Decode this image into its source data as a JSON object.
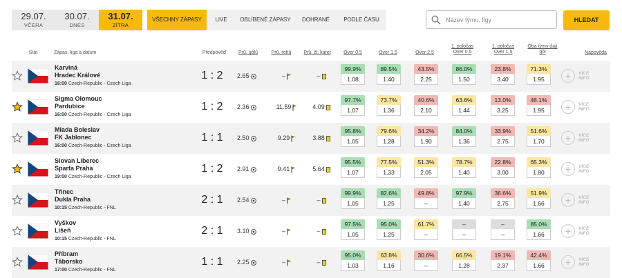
{
  "dates": [
    {
      "date": "29.07.",
      "label": "VČERA",
      "active": false
    },
    {
      "date": "30.07.",
      "label": "DNES",
      "active": false
    },
    {
      "date": "31.07.",
      "label": "ZÍTRA",
      "active": true
    }
  ],
  "filters": [
    "VŠECHNY ZÁPASY",
    "LIVE",
    "OBLÍBENÉ ZÁPASY",
    "DOHRANÉ",
    "PODLE ČASU"
  ],
  "search": {
    "placeholder": "Název týmu, ligy",
    "value": "",
    "button": "HLEDAT"
  },
  "columns": {
    "stat": "Stát",
    "match": "Zápas, liga a datum",
    "prediction": "Předpověď",
    "avg_goals": "Prů. gólů",
    "avg_corners": "Prů. rohů",
    "avg_cards": "Prů. žl. karet",
    "over05": "Over 0.5",
    "over15": "Over 1.5",
    "over25": "Over 2.5",
    "h1_over05_a": "1. poločas",
    "h1_over05_b": "Over 0.5",
    "h1_over15_a": "1. poločas",
    "h1_over15_b": "Over 1.5",
    "btts_a": "Oba týmy dají",
    "btts_b": "gól",
    "help": "Nápověda"
  },
  "info_label_1": "VÍCE",
  "info_label_2": "INFO",
  "matches": [
    {
      "home": "Karviná",
      "away": "Hradec Králové",
      "time": "16:00",
      "league": "Czech-Republic - Czech Liga",
      "favorite": false,
      "prediction": "1 : 2",
      "avg_goals": "2.65",
      "avg_corners": "–",
      "avg_cards": "–",
      "markets": [
        [
          "99.9%",
          "1.08",
          "g"
        ],
        [
          "89.5%",
          "1.40",
          "g"
        ],
        [
          "43.5%",
          "2.25",
          "r"
        ],
        [
          "86.0%",
          "1.50",
          "g"
        ],
        [
          "23.8%",
          "3.40",
          "r"
        ],
        [
          "71.3%",
          "1.95",
          "y"
        ]
      ]
    },
    {
      "home": "Sigma Olomouc",
      "away": "Pardubice",
      "time": "16:00",
      "league": "Czech-Republic - Czech Liga",
      "favorite": true,
      "prediction": "1 : 2",
      "avg_goals": "2.36",
      "avg_corners": "11.59",
      "avg_cards": "4.09",
      "markets": [
        [
          "97.7%",
          "1.07",
          "g"
        ],
        [
          "73.7%",
          "1.36",
          "y"
        ],
        [
          "40.6%",
          "2.10",
          "r"
        ],
        [
          "63.6%",
          "1.44",
          "y"
        ],
        [
          "13.0%",
          "3.25",
          "r"
        ],
        [
          "48.1%",
          "1.95",
          "r"
        ]
      ]
    },
    {
      "home": "Mlada Boleslav",
      "away": "FK Jablonec",
      "time": "16:00",
      "league": "Czech-Republic - Czech Liga",
      "favorite": false,
      "prediction": "1 : 1",
      "avg_goals": "2.50",
      "avg_corners": "9.29",
      "avg_cards": "3.88",
      "markets": [
        [
          "95.8%",
          "1.05",
          "g"
        ],
        [
          "79.6%",
          "1.28",
          "y"
        ],
        [
          "34.2%",
          "1.90",
          "r"
        ],
        [
          "84.0%",
          "1.36",
          "g"
        ],
        [
          "33.9%",
          "2.75",
          "r"
        ],
        [
          "51.6%",
          "1.70",
          "y"
        ]
      ]
    },
    {
      "home": "Slovan Liberec",
      "away": "Sparta Praha",
      "time": "19:00",
      "league": "Czech-Republic - Czech Liga",
      "favorite": true,
      "prediction": "1 : 2",
      "avg_goals": "2.91",
      "avg_corners": "9.41",
      "avg_cards": "5.64",
      "markets": [
        [
          "95.5%",
          "1.07",
          "g"
        ],
        [
          "77.5%",
          "1.33",
          "y"
        ],
        [
          "51.3%",
          "2.05",
          "y"
        ],
        [
          "78.7%",
          "1.40",
          "y"
        ],
        [
          "22.8%",
          "3.00",
          "r"
        ],
        [
          "65.3%",
          "1.80",
          "y"
        ]
      ]
    },
    {
      "home": "Třinec",
      "away": "Dukla Praha",
      "time": "10:15",
      "league": "Czech-Republic - FNL",
      "favorite": false,
      "prediction": "2 : 1",
      "avg_goals": "2.54",
      "avg_corners": "–",
      "avg_cards": "–",
      "markets": [
        [
          "99.9%",
          "1.05",
          "g"
        ],
        [
          "82.6%",
          "1.25",
          "g"
        ],
        [
          "49.8%",
          "–",
          "r"
        ],
        [
          "97.9%",
          "1.40",
          "g"
        ],
        [
          "36.6%",
          "2.75",
          "r"
        ],
        [
          "51.9%",
          "1.66",
          "y"
        ]
      ]
    },
    {
      "home": "Vyškov",
      "away": "Líšeň",
      "time": "10:15",
      "league": "Czech-Republic - FNL",
      "favorite": false,
      "prediction": "2 : 1",
      "avg_goals": "3.10",
      "avg_corners": "–",
      "avg_cards": "–",
      "markets": [
        [
          "97.5%",
          "1.05",
          "g"
        ],
        [
          "95.0%",
          "1.25",
          "g"
        ],
        [
          "61.7%",
          "–",
          "y"
        ],
        [
          "–",
          "–",
          "n"
        ],
        [
          "–",
          "–",
          "n"
        ],
        [
          "85.0%",
          "1.66",
          "g"
        ]
      ]
    },
    {
      "home": "Příbram",
      "away": "Táborsko",
      "time": "17:00",
      "league": "Czech-Republic - FNL",
      "favorite": false,
      "prediction": "1 : 1",
      "avg_goals": "2.25",
      "avg_corners": "–",
      "avg_cards": "–",
      "markets": [
        [
          "95.0%",
          "1.03",
          "g"
        ],
        [
          "63.8%",
          "1.16",
          "y"
        ],
        [
          "30.6%",
          "–",
          "r"
        ],
        [
          "66.5%",
          "1.28",
          "y"
        ],
        [
          "19.1%",
          "2.37",
          "r"
        ],
        [
          "42.4%",
          "1.66",
          "r"
        ]
      ]
    }
  ],
  "colors": {
    "accent": "#f7b90c",
    "green": "#a9ddb4",
    "yellow": "#fbe6a3",
    "red": "#f2b8b4",
    "neutral": "#dddddd"
  }
}
